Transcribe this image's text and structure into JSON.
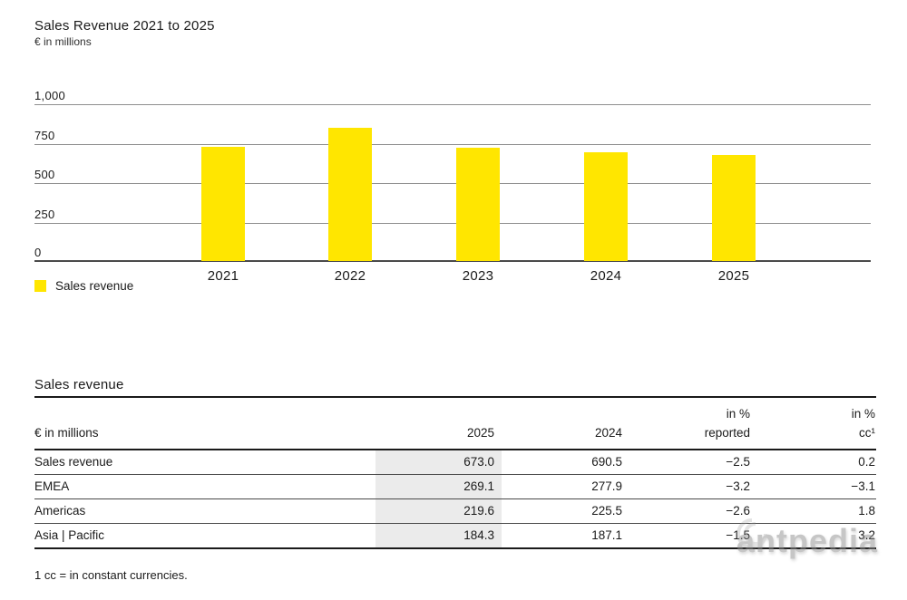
{
  "header": {
    "title": "Sales Revenue 2021 to 2025",
    "subtitle": "€ in millions"
  },
  "chart_data": {
    "type": "bar",
    "title": "Sales Revenue 2021 to 2025",
    "unit_label": "€ in millions",
    "categories": [
      "2021",
      "2022",
      "2023",
      "2024",
      "2025"
    ],
    "values": [
      725,
      845,
      718,
      690.5,
      673.0
    ],
    "ylim": [
      0,
      1000
    ],
    "ytick_values": [
      1000,
      750,
      500,
      250,
      0
    ],
    "ytick_labels": [
      "1,000",
      "750",
      "500",
      "250",
      "0"
    ],
    "grid": true,
    "bar_color": "#FFE600",
    "legend_label": "Sales revenue",
    "legend_position": "bottom-left"
  },
  "table": {
    "section_title": "Sales revenue",
    "header": {
      "col1": "€ in millions",
      "col2": "2025",
      "col3": "2024",
      "col4_line1": "in %",
      "col4_line2": "reported",
      "col5_line1": "in %",
      "col5_line2": "cc¹"
    },
    "highlight_color": "#ebebeb",
    "rows": [
      {
        "label": "Sales revenue",
        "y2025": "673.0",
        "y2024": "690.5",
        "pct_reported": "−2.5",
        "pct_cc": "0.2"
      },
      {
        "label": "EMEA",
        "y2025": "269.1",
        "y2024": "277.9",
        "pct_reported": "−3.2",
        "pct_cc": "−3.1"
      },
      {
        "label": "Americas",
        "y2025": "219.6",
        "y2024": "225.5",
        "pct_reported": "−2.6",
        "pct_cc": "1.8"
      },
      {
        "label": "Asia | Pacific",
        "y2025": "184.3",
        "y2024": "187.1",
        "pct_reported": "−1.5",
        "pct_cc": "3.2"
      }
    ]
  },
  "footnote": "1 cc = in constant currencies.",
  "watermark": "antpedia"
}
